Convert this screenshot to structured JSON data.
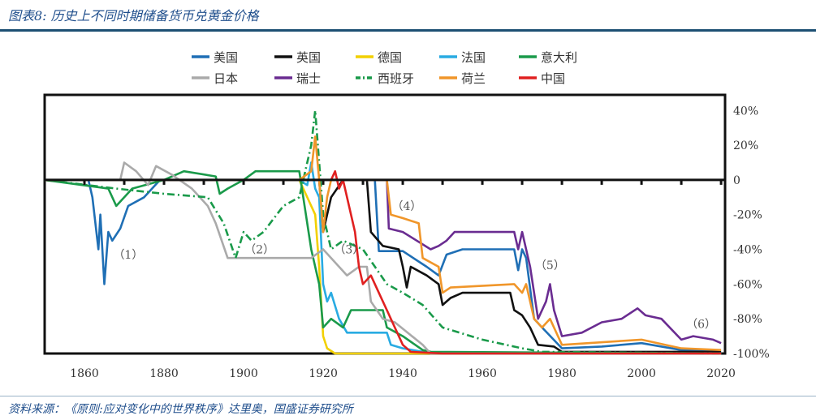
{
  "header": {
    "title": "图表8: 历史上不同时期储备货币兑黄金价格"
  },
  "footer": {
    "source": "资料来源：《原则:应对变化中的世界秩序》达里奥，国盛证券研究所"
  },
  "chart_data": {
    "type": "line",
    "title": "",
    "xlabel": "",
    "ylabel": "",
    "xlim": [
      1850,
      2021
    ],
    "ylim": [
      -100,
      49
    ],
    "x_ticks": [
      1860,
      1880,
      1900,
      1920,
      1940,
      1960,
      1980,
      2000,
      2020
    ],
    "y_ticks": [
      {
        "v": 40,
        "label": "40%"
      },
      {
        "v": 20,
        "label": "20%"
      },
      {
        "v": 0,
        "label": "0"
      },
      {
        "v": -20,
        "label": "-20%"
      },
      {
        "v": -40,
        "label": "-40%"
      },
      {
        "v": -60,
        "label": "-60%"
      },
      {
        "v": -80,
        "label": "-80%"
      },
      {
        "v": -100,
        "label": "-100%"
      }
    ],
    "y_axis_side": "right",
    "grid": false,
    "legend": "top",
    "annotations": [
      {
        "label": "（1）",
        "x": 1871,
        "y": -43
      },
      {
        "label": "（2）",
        "x": 1904,
        "y": -40
      },
      {
        "label": "（3）",
        "x": 1926.5,
        "y": -40
      },
      {
        "label": "（4）",
        "x": 1941,
        "y": -15
      },
      {
        "label": "（5）",
        "x": 1977,
        "y": -49
      },
      {
        "label": "（6）",
        "x": 2015,
        "y": -83
      }
    ],
    "series": [
      {
        "name": "美国",
        "color": "#1f6fb5",
        "dash": "",
        "points": [
          [
            1850,
            0
          ],
          [
            1861,
            0
          ],
          [
            1862,
            -10
          ],
          [
            1863.5,
            -40
          ],
          [
            1864,
            -20
          ],
          [
            1865,
            -60
          ],
          [
            1866,
            -30
          ],
          [
            1867,
            -35
          ],
          [
            1869,
            -28
          ],
          [
            1871,
            -15
          ],
          [
            1875,
            -10
          ],
          [
            1879,
            0
          ],
          [
            1933,
            0
          ],
          [
            1934,
            -41
          ],
          [
            1940,
            -41
          ],
          [
            1946,
            -50
          ],
          [
            1949,
            -55
          ],
          [
            1951,
            -43
          ],
          [
            1955,
            -40
          ],
          [
            1968,
            -40
          ],
          [
            1969,
            -52
          ],
          [
            1970,
            -40
          ],
          [
            1971,
            -45
          ],
          [
            1973,
            -80
          ],
          [
            1975,
            -85
          ],
          [
            1980,
            -97
          ],
          [
            1990,
            -96
          ],
          [
            2000,
            -94
          ],
          [
            2010,
            -98
          ],
          [
            2020,
            -99
          ]
        ]
      },
      {
        "name": "英国",
        "color": "#111111",
        "dash": "",
        "points": [
          [
            1850,
            0
          ],
          [
            1919,
            0
          ],
          [
            1920,
            -30
          ],
          [
            1921,
            -20
          ],
          [
            1922,
            -10
          ],
          [
            1925,
            0
          ],
          [
            1931,
            0
          ],
          [
            1932,
            -30
          ],
          [
            1935,
            -38
          ],
          [
            1939,
            -40
          ],
          [
            1940,
            -50
          ],
          [
            1941,
            -62
          ],
          [
            1942,
            -50
          ],
          [
            1946,
            -55
          ],
          [
            1949,
            -60
          ],
          [
            1950,
            -72
          ],
          [
            1952,
            -68
          ],
          [
            1955,
            -65
          ],
          [
            1967,
            -65
          ],
          [
            1968,
            -75
          ],
          [
            1970,
            -78
          ],
          [
            1972,
            -85
          ],
          [
            1974,
            -95
          ],
          [
            1978,
            -96
          ],
          [
            1980,
            -99
          ],
          [
            2020,
            -99
          ]
        ]
      },
      {
        "name": "德国",
        "color": "#f2d000",
        "dash": "",
        "points": [
          [
            1850,
            0
          ],
          [
            1914,
            0
          ],
          [
            1918,
            -20
          ],
          [
            1919,
            -50
          ],
          [
            1920,
            -90
          ],
          [
            1921,
            -97
          ],
          [
            1923,
            -100
          ],
          [
            2020,
            -100
          ]
        ]
      },
      {
        "name": "法国",
        "color": "#29abe2",
        "dash": "",
        "points": [
          [
            1850,
            0
          ],
          [
            1914,
            0
          ],
          [
            1916,
            -3
          ],
          [
            1917,
            10
          ],
          [
            1918,
            -5
          ],
          [
            1919,
            -10
          ],
          [
            1920,
            -60
          ],
          [
            1921,
            -70
          ],
          [
            1922,
            -65
          ],
          [
            1924,
            -80
          ],
          [
            1926,
            -88
          ],
          [
            1928,
            -88
          ],
          [
            1936,
            -88
          ],
          [
            1937,
            -95
          ],
          [
            1940,
            -97
          ],
          [
            1945,
            -99
          ],
          [
            1958,
            -100
          ],
          [
            2020,
            -100
          ]
        ]
      },
      {
        "name": "意大利",
        "color": "#1a9a4a",
        "dash": "",
        "points": [
          [
            1850,
            0
          ],
          [
            1866,
            -5
          ],
          [
            1868,
            -15
          ],
          [
            1872,
            -5
          ],
          [
            1880,
            0
          ],
          [
            1885,
            5
          ],
          [
            1893,
            2
          ],
          [
            1894,
            -8
          ],
          [
            1896,
            -5
          ],
          [
            1900,
            0
          ],
          [
            1903,
            5
          ],
          [
            1914,
            5
          ],
          [
            1915,
            -10
          ],
          [
            1917,
            -40
          ],
          [
            1919,
            -60
          ],
          [
            1920,
            -85
          ],
          [
            1922,
            -80
          ],
          [
            1925,
            -85
          ],
          [
            1927,
            -75
          ],
          [
            1935,
            -75
          ],
          [
            1936,
            -85
          ],
          [
            1940,
            -90
          ],
          [
            1945,
            -98
          ],
          [
            1947,
            -99
          ],
          [
            2020,
            -100
          ]
        ]
      },
      {
        "name": "日本",
        "color": "#aaaaaa",
        "dash": "",
        "points": [
          [
            1850,
            0
          ],
          [
            1869,
            0
          ],
          [
            1870,
            10
          ],
          [
            1873,
            5
          ],
          [
            1876,
            -3
          ],
          [
            1878,
            8
          ],
          [
            1882,
            3
          ],
          [
            1887,
            -5
          ],
          [
            1889,
            -10
          ],
          [
            1891,
            -15
          ],
          [
            1893,
            -25
          ],
          [
            1896,
            -45
          ],
          [
            1917,
            -45
          ],
          [
            1920,
            -40
          ],
          [
            1922,
            -45
          ],
          [
            1926,
            -55
          ],
          [
            1929,
            -50
          ],
          [
            1931,
            -50
          ],
          [
            1932,
            -70
          ],
          [
            1935,
            -80
          ],
          [
            1938,
            -82
          ],
          [
            1945,
            -95
          ],
          [
            1947,
            -100
          ],
          [
            2020,
            -100
          ]
        ]
      },
      {
        "name": "瑞士",
        "color": "#6a2c91",
        "dash": "",
        "points": [
          [
            1850,
            0
          ],
          [
            1936,
            0
          ],
          [
            1936.5,
            -28
          ],
          [
            1940,
            -30
          ],
          [
            1947,
            -40
          ],
          [
            1949,
            -38
          ],
          [
            1951,
            -35
          ],
          [
            1953,
            -30
          ],
          [
            1968,
            -30
          ],
          [
            1969,
            -40
          ],
          [
            1970,
            -30
          ],
          [
            1972,
            -50
          ],
          [
            1974,
            -80
          ],
          [
            1976,
            -70
          ],
          [
            1977,
            -60
          ],
          [
            1978,
            -75
          ],
          [
            1980,
            -90
          ],
          [
            1985,
            -88
          ],
          [
            1990,
            -82
          ],
          [
            1995,
            -80
          ],
          [
            1999,
            -74
          ],
          [
            2001,
            -78
          ],
          [
            2005,
            -80
          ],
          [
            2010,
            -92
          ],
          [
            2013,
            -90
          ],
          [
            2018,
            -92
          ],
          [
            2020,
            -94
          ]
        ]
      },
      {
        "name": "西班牙",
        "color": "#1a9a4a",
        "dash": "9 4 2 4",
        "points": [
          [
            1850,
            0
          ],
          [
            1868,
            -5
          ],
          [
            1880,
            -8
          ],
          [
            1891,
            -10
          ],
          [
            1895,
            -25
          ],
          [
            1898,
            -45
          ],
          [
            1900,
            -30
          ],
          [
            1902,
            -35
          ],
          [
            1905,
            -30
          ],
          [
            1910,
            -15
          ],
          [
            1914,
            -10
          ],
          [
            1917,
            20
          ],
          [
            1918,
            40
          ],
          [
            1919,
            10
          ],
          [
            1920,
            -20
          ],
          [
            1922,
            -40
          ],
          [
            1925,
            -35
          ],
          [
            1930,
            -40
          ],
          [
            1936,
            -60
          ],
          [
            1940,
            -65
          ],
          [
            1945,
            -72
          ],
          [
            1950,
            -85
          ],
          [
            1960,
            -92
          ],
          [
            1970,
            -97
          ],
          [
            1975,
            -99
          ],
          [
            2020,
            -100
          ]
        ]
      },
      {
        "name": "荷兰",
        "color": "#f0962a",
        "dash": "",
        "points": [
          [
            1850,
            0
          ],
          [
            1914,
            0
          ],
          [
            1917,
            5
          ],
          [
            1918,
            25
          ],
          [
            1919,
            0
          ],
          [
            1920,
            -30
          ],
          [
            1921,
            -10
          ],
          [
            1922,
            0
          ],
          [
            1936,
            0
          ],
          [
            1937,
            -20
          ],
          [
            1940,
            -22
          ],
          [
            1944,
            -25
          ],
          [
            1945,
            -45
          ],
          [
            1949,
            -50
          ],
          [
            1950,
            -65
          ],
          [
            1952,
            -62
          ],
          [
            1968,
            -60
          ],
          [
            1970,
            -65
          ],
          [
            1971,
            -60
          ],
          [
            1973,
            -80
          ],
          [
            1975,
            -85
          ],
          [
            1977,
            -80
          ],
          [
            1980,
            -95
          ],
          [
            2000,
            -92
          ],
          [
            2010,
            -97
          ],
          [
            2020,
            -98
          ]
        ]
      },
      {
        "name": "中国",
        "color": "#e02020",
        "dash": "",
        "points": [
          [
            1922,
            0
          ],
          [
            1923,
            5
          ],
          [
            1924,
            -5
          ],
          [
            1925,
            0
          ],
          [
            1926,
            -10
          ],
          [
            1928,
            -30
          ],
          [
            1929,
            -50
          ],
          [
            1930,
            -60
          ],
          [
            1932,
            -55
          ],
          [
            1934,
            -65
          ],
          [
            1936,
            -75
          ],
          [
            1938,
            -85
          ],
          [
            1940,
            -95
          ],
          [
            1942,
            -99
          ],
          [
            1950,
            -100
          ],
          [
            2020,
            -100
          ]
        ]
      }
    ]
  }
}
